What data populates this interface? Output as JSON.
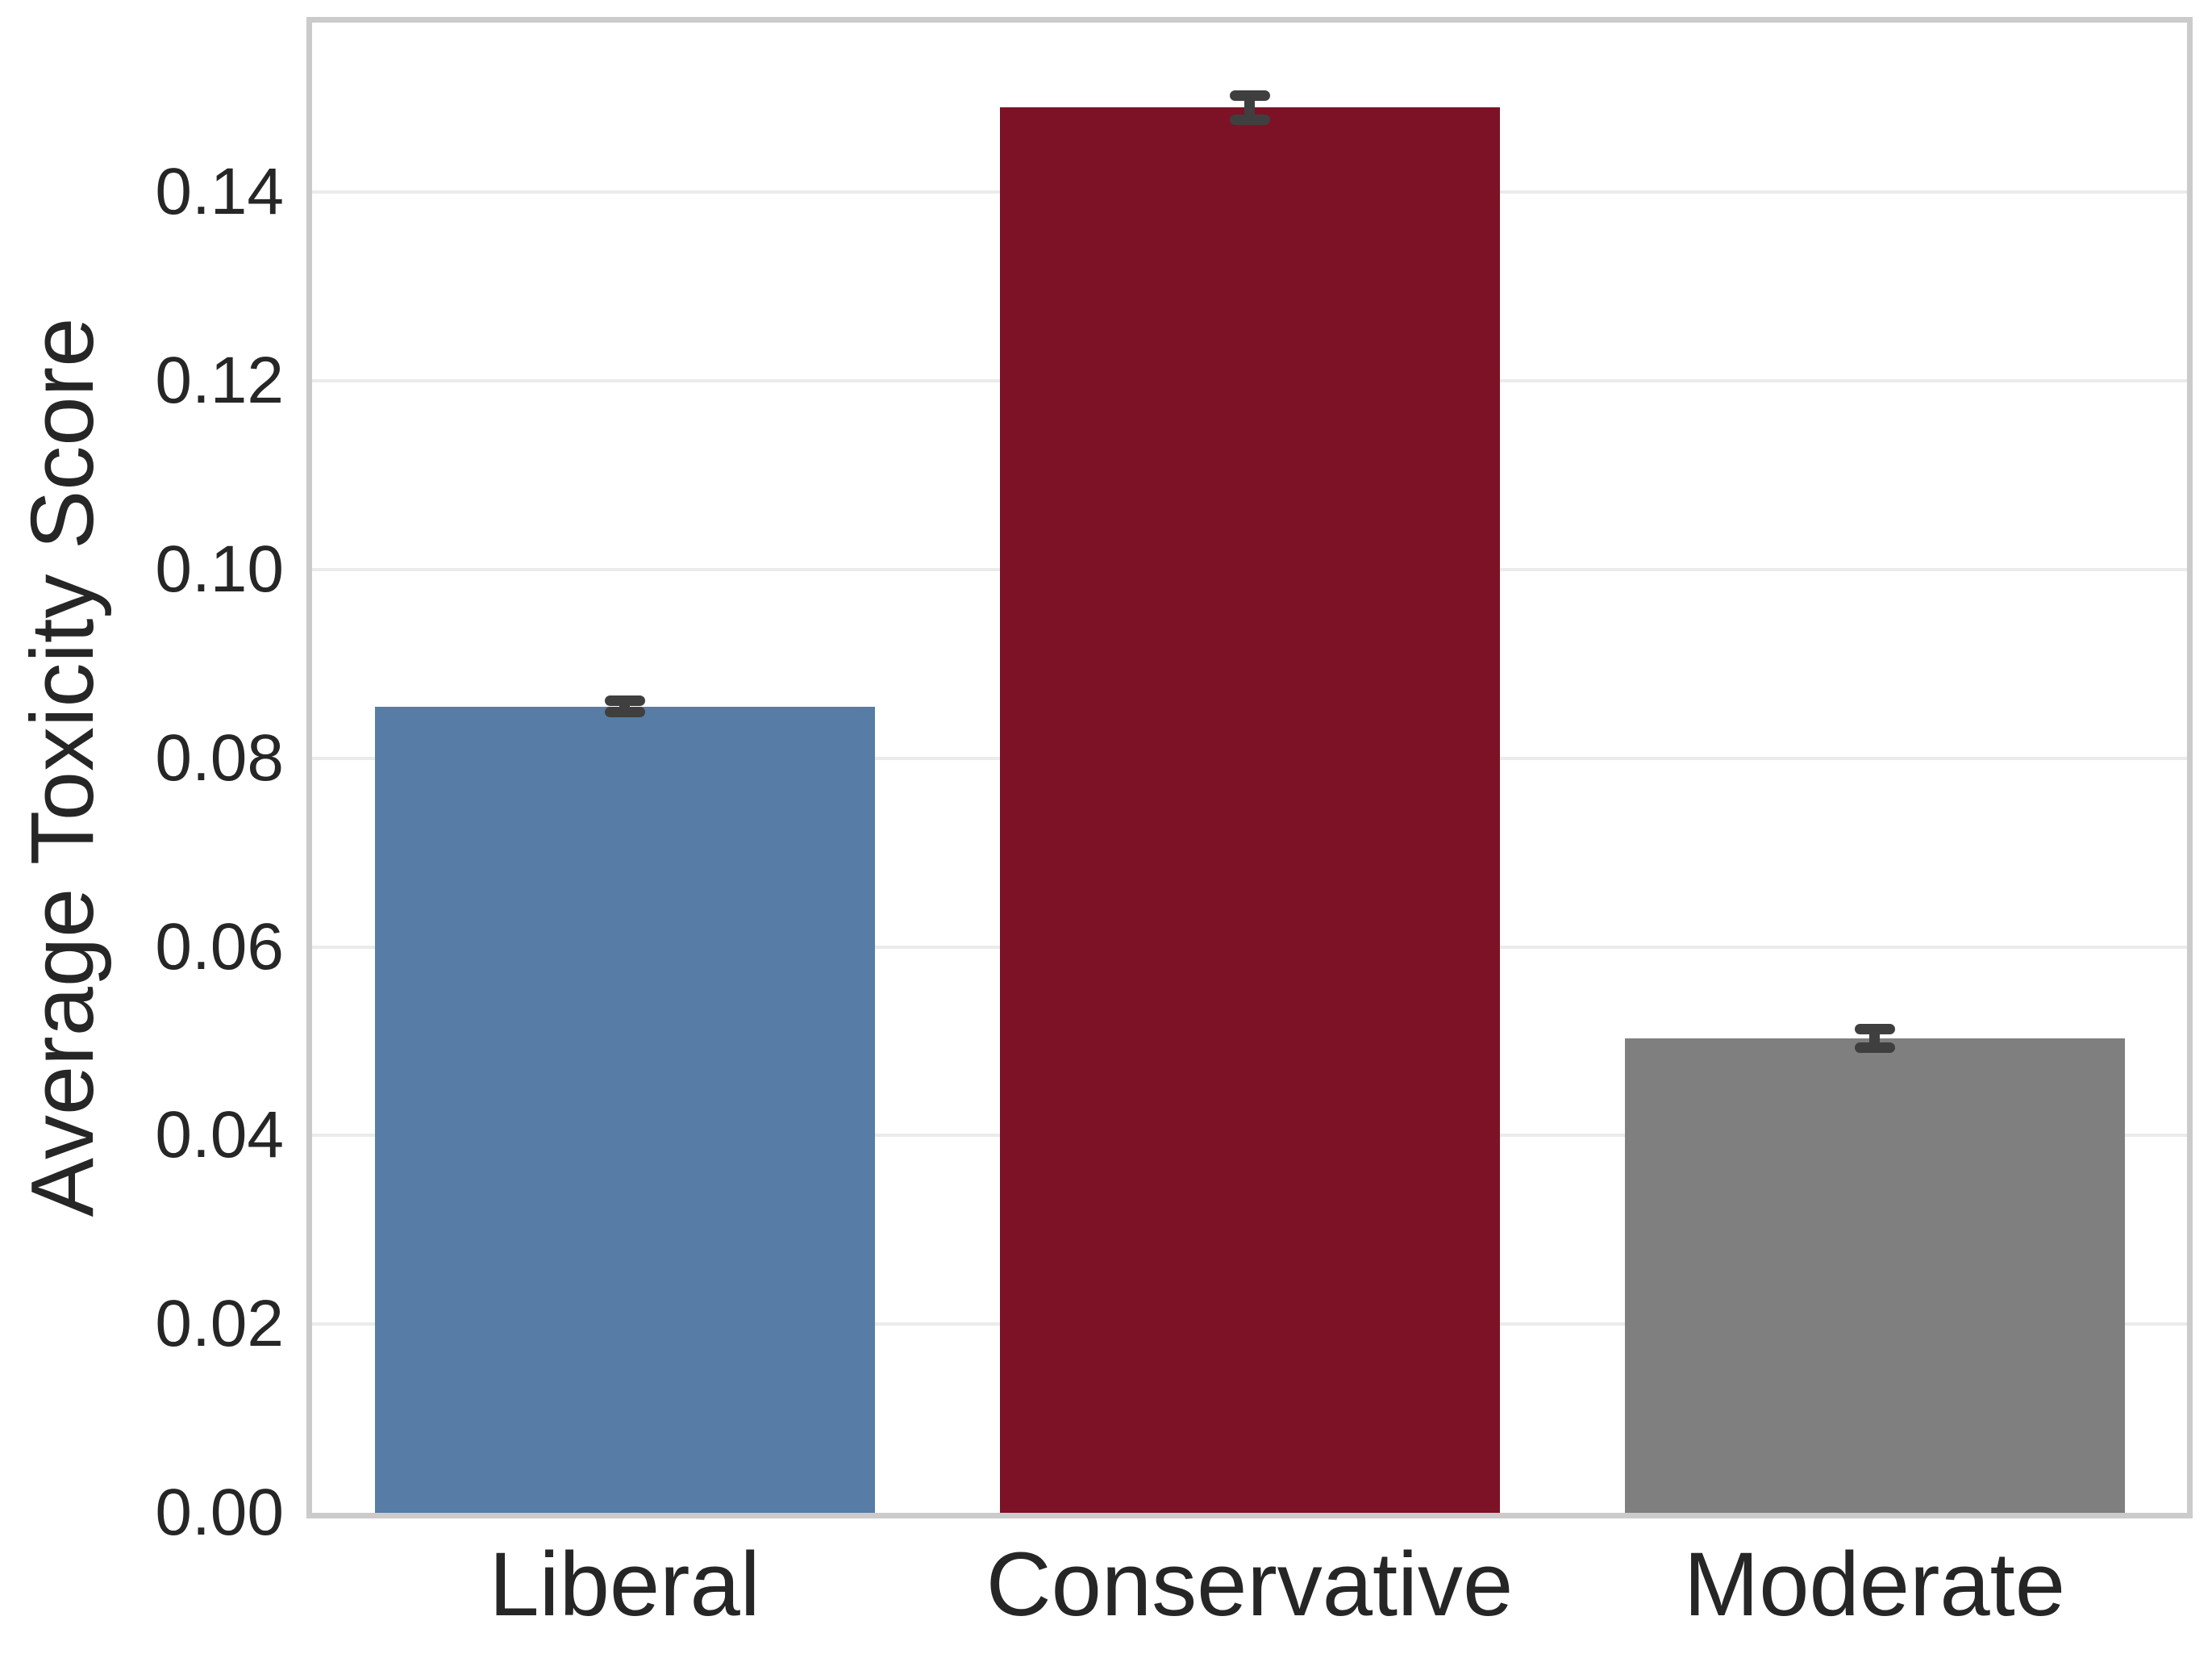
{
  "figure": {
    "background": "#ffffff",
    "text_color": "#262626"
  },
  "chart_data": {
    "type": "bar",
    "title": "",
    "xlabel": "",
    "ylabel": "Average Toxicity Score",
    "categories": [
      "Liberal",
      "Conservative",
      "Moderate"
    ],
    "values": [
      0.0855,
      0.149,
      0.0503
    ],
    "errors": [
      0.0006,
      0.0013,
      0.001
    ],
    "bar_colors": [
      "#577CA6",
      "#7D1227",
      "#7F7F7F"
    ],
    "error_color": "#3F3F3F",
    "ylim": [
      0,
      0.158
    ],
    "yticks": [
      0.0,
      0.02,
      0.04,
      0.06,
      0.08,
      0.1,
      0.12,
      0.14
    ],
    "ytick_labels": [
      "0.00",
      "0.02",
      "0.04",
      "0.06",
      "0.08",
      "0.10",
      "0.12",
      "0.14"
    ],
    "grid": true,
    "grid_color": "#EBEBEB",
    "spine_color": "#CBCBCB",
    "bar_width_fraction": 0.8,
    "legend": null
  }
}
